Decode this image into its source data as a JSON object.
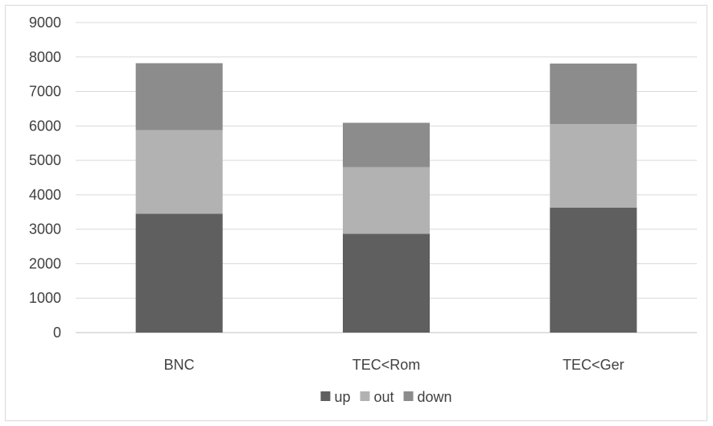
{
  "chart_data": {
    "type": "bar",
    "stacked": true,
    "categories": [
      "BNC",
      "TEC<Rom",
      "TEC<Ger"
    ],
    "series": [
      {
        "name": "up",
        "values": [
          3450,
          2870,
          3630
        ],
        "color": "#5f5f5f"
      },
      {
        "name": "out",
        "values": [
          2430,
          1930,
          2420
        ],
        "color": "#b2b2b2"
      },
      {
        "name": "down",
        "values": [
          1940,
          1290,
          1760
        ],
        "color": "#8c8c8c"
      }
    ],
    "yticks": [
      "0",
      "1000",
      "2000",
      "3000",
      "4000",
      "5000",
      "6000",
      "7000",
      "8000",
      "9000"
    ],
    "ylim": [
      0,
      9000
    ],
    "grid": true,
    "legend_position": "bottom",
    "gridline_color": "#d9d9d9",
    "axis_line_color": "#bfbfbf"
  }
}
